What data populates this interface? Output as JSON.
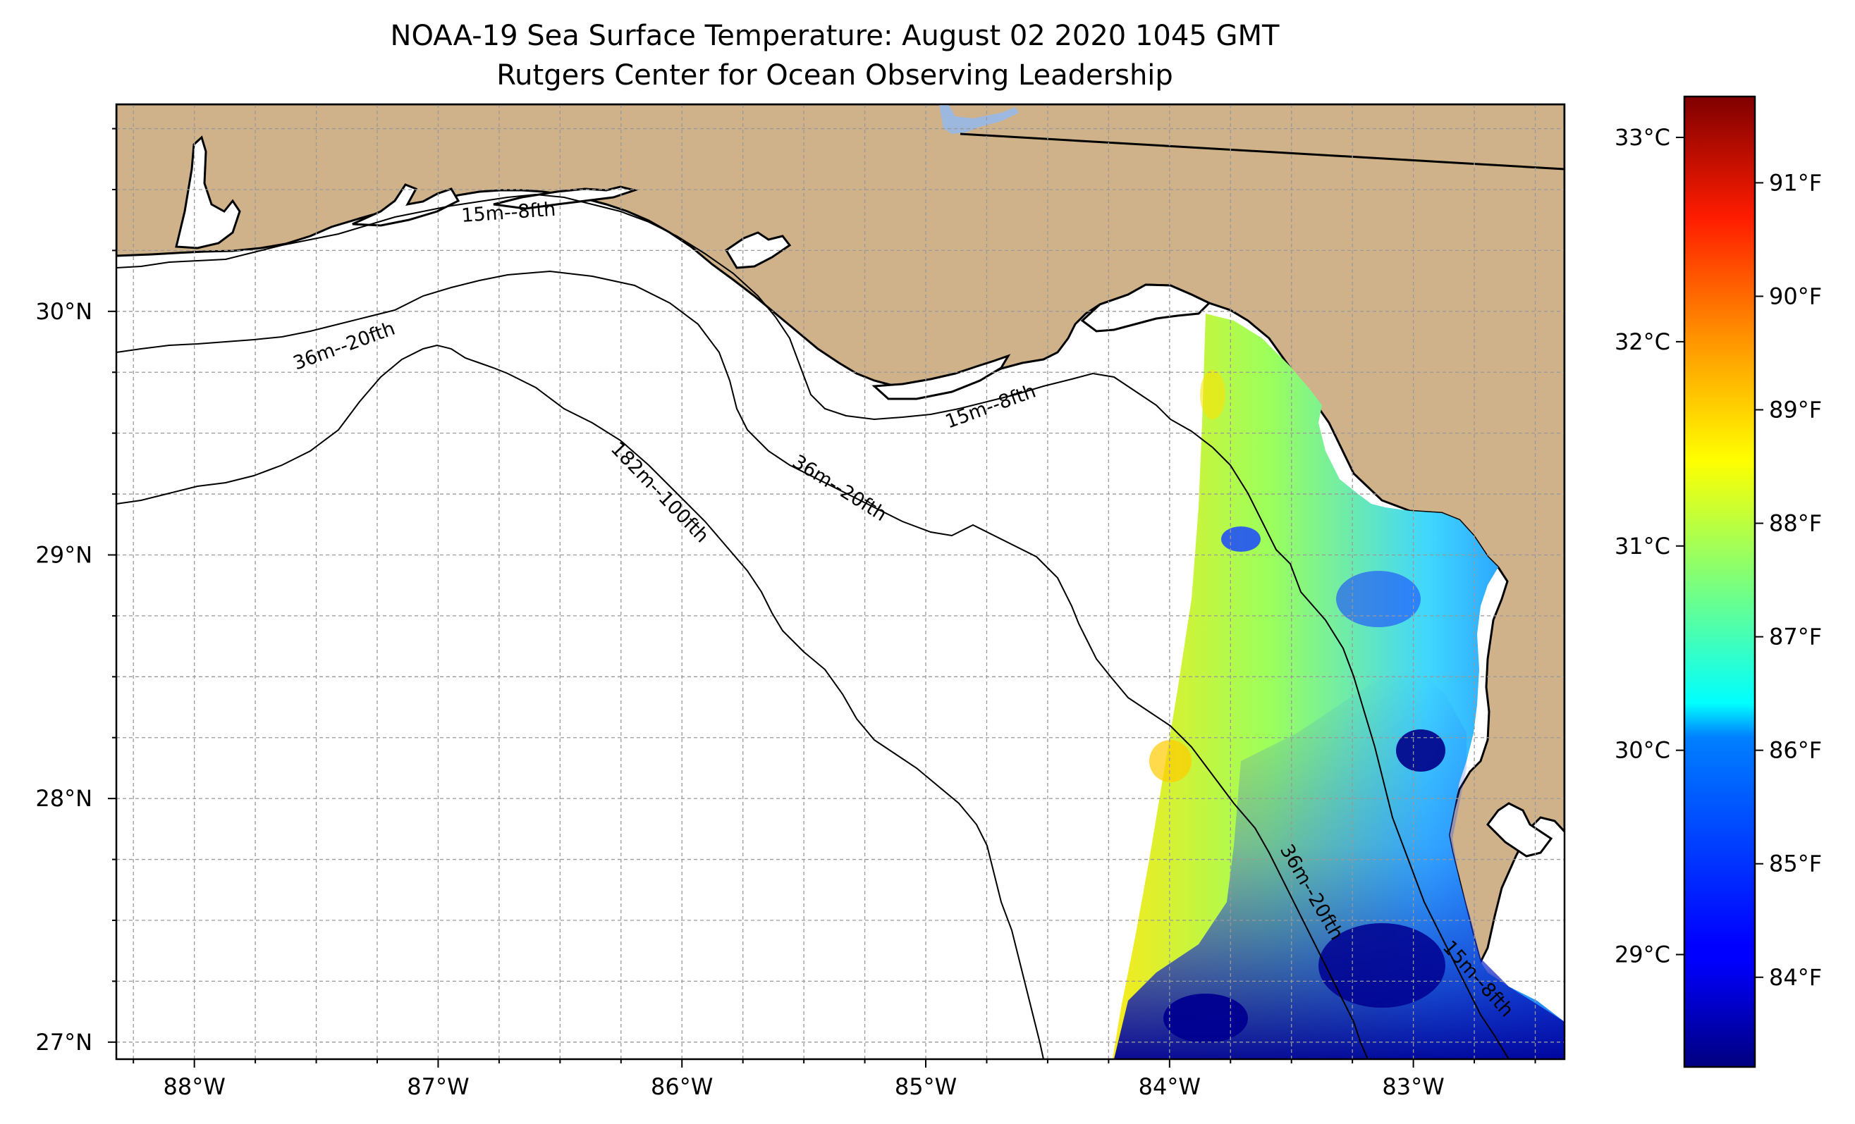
{
  "title": "NOAA-19 Sea Surface Temperature: August 02 2020 1045 GMT",
  "subtitle": "Rutgers Center for Ocean Observing Leadership",
  "map": {
    "lon_range": [
      -88.32,
      -82.38
    ],
    "lat_range": [
      26.93,
      30.85
    ],
    "lon_ticks": [
      {
        "value": -88,
        "label": "88°W"
      },
      {
        "value": -87,
        "label": "87°W"
      },
      {
        "value": -86,
        "label": "86°W"
      },
      {
        "value": -85,
        "label": "85°W"
      },
      {
        "value": -84,
        "label": "84°W"
      },
      {
        "value": -83,
        "label": "83°W"
      }
    ],
    "lat_ticks": [
      {
        "value": 30,
        "label": "30°N"
      },
      {
        "value": 29,
        "label": "29°N"
      },
      {
        "value": 28,
        "label": "28°N"
      },
      {
        "value": 27,
        "label": "27°N"
      }
    ],
    "gridlines": true,
    "land_color": "#cfb28a",
    "water_color": "#ffffff",
    "lake_color": "#9db8de",
    "contour_labels": [
      {
        "text": "15m--8fth"
      },
      {
        "text": "36m--20fth"
      },
      {
        "text": "15m--8fth"
      },
      {
        "text": "36m--20fth"
      },
      {
        "text": "182m--100fth"
      },
      {
        "text": "36m--20fth"
      },
      {
        "text": "15m--8fth"
      }
    ]
  },
  "colorbar": {
    "colormap": "jet",
    "celsius_range": [
      28.45,
      33.2
    ],
    "celsius_ticks": [
      {
        "value": 29,
        "label": "29°C"
      },
      {
        "value": 30,
        "label": "30°C"
      },
      {
        "value": 31,
        "label": "31°C"
      },
      {
        "value": 32,
        "label": "32°C"
      },
      {
        "value": 33,
        "label": "33°C"
      }
    ],
    "fahrenheit_ticks": [
      {
        "value": 84,
        "label": "84°F"
      },
      {
        "value": 85,
        "label": "85°F"
      },
      {
        "value": 86,
        "label": "86°F"
      },
      {
        "value": 87,
        "label": "87°F"
      },
      {
        "value": 88,
        "label": "88°F"
      },
      {
        "value": 89,
        "label": "89°F"
      },
      {
        "value": 90,
        "label": "90°F"
      },
      {
        "value": 91,
        "label": "91°F"
      }
    ]
  }
}
